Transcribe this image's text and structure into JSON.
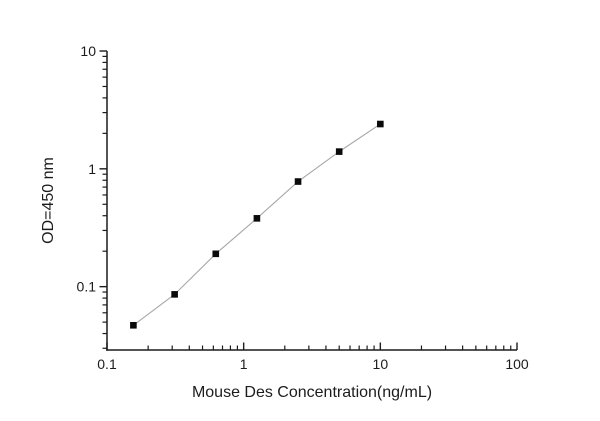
{
  "chart_data": {
    "type": "line",
    "title": "",
    "xlabel": "Mouse Des Concentration(ng/mL)",
    "ylabel": "OD=450 nm",
    "x_scale": "log",
    "y_scale": "log",
    "xlim": [
      0.1,
      100
    ],
    "ylim": [
      0.029,
      10
    ],
    "x_major_ticks": [
      0.1,
      1,
      10,
      100
    ],
    "x_major_tick_labels": [
      "0.1",
      "1",
      "10",
      "100"
    ],
    "y_major_ticks": [
      0.1,
      1,
      10
    ],
    "y_major_tick_labels": [
      "0.1",
      "1",
      "10"
    ],
    "grid": false,
    "legend": "none",
    "background_color": "#ffffff",
    "axis_color": "#1c1c1c",
    "series": [
      {
        "name": "standard-curve",
        "marker": "filled-square",
        "marker_color": "#0a0a0a",
        "line_color": "#a8a8a8",
        "x": [
          0.156,
          0.3125,
          0.625,
          1.25,
          2.5,
          5,
          10
        ],
        "y": [
          0.047,
          0.086,
          0.19,
          0.38,
          0.78,
          1.4,
          2.4
        ]
      }
    ]
  }
}
